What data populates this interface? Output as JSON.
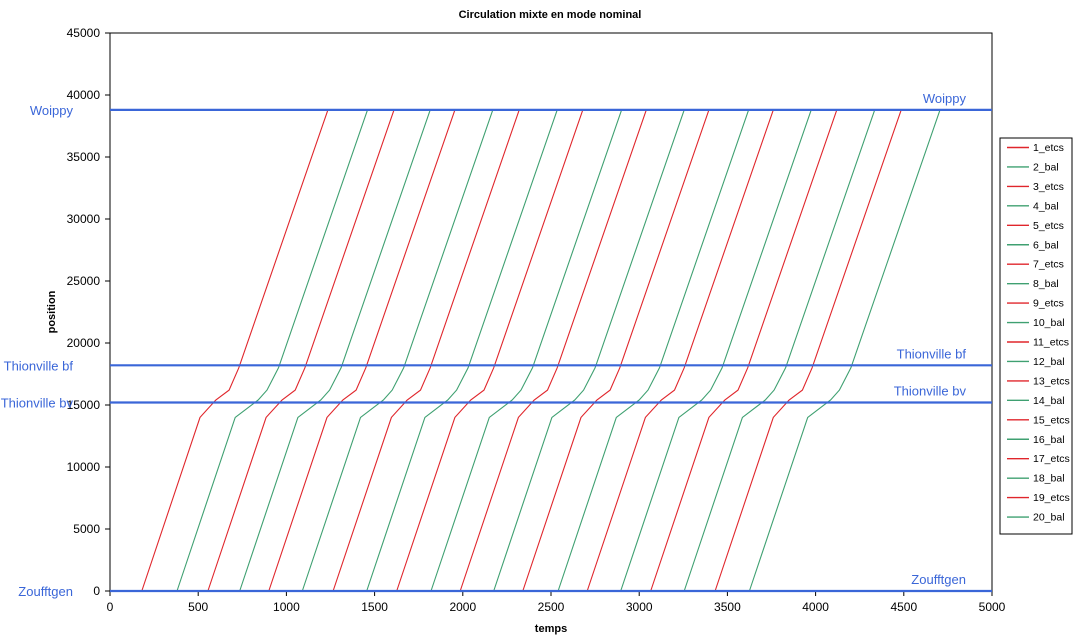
{
  "chart_data": {
    "type": "line",
    "title": "Circulation mixte en mode nominal",
    "xlabel": "temps",
    "ylabel": "position",
    "xlim": [
      0,
      5000
    ],
    "ylim": [
      0,
      45000
    ],
    "x_ticks": [
      "0",
      "500",
      "1000",
      "1500",
      "2000",
      "2500",
      "3000",
      "3500",
      "4000",
      "4500",
      "5000"
    ],
    "y_ticks": [
      "0",
      "5000",
      "10000",
      "15000",
      "20000",
      "25000",
      "30000",
      "35000",
      "40000",
      "45000"
    ],
    "grid": false,
    "legend_position": "right",
    "colors": {
      "etcs": "#e0262c",
      "bal": "#3fa071",
      "station": "#3a66d8"
    },
    "stations": [
      {
        "name": "Zoufftgen",
        "position": 0
      },
      {
        "name": "Thionville bv",
        "position": 15200
      },
      {
        "name": "Thionville bf",
        "position": 18200
      },
      {
        "name": "Woippy",
        "position": 38800
      }
    ],
    "series": [
      {
        "name": "1_etcs",
        "kind": "etcs",
        "x": [
          180,
          510,
          600,
          675,
          730,
          1235
        ],
        "y": [
          0,
          14000,
          15400,
          16200,
          18000,
          38800
        ]
      },
      {
        "name": "2_bal",
        "kind": "bal",
        "x": [
          380,
          710,
          840,
          890,
          955,
          1460
        ],
        "y": [
          0,
          14000,
          15400,
          16200,
          18000,
          38800
        ]
      },
      {
        "name": "3_etcs",
        "kind": "etcs",
        "x": [
          555,
          885,
          975,
          1050,
          1105,
          1610
        ],
        "y": [
          0,
          14000,
          15400,
          16200,
          18000,
          38800
        ]
      },
      {
        "name": "4_bal",
        "kind": "bal",
        "x": [
          735,
          1065,
          1195,
          1245,
          1310,
          1815
        ],
        "y": [
          0,
          14000,
          15400,
          16200,
          18000,
          38800
        ]
      },
      {
        "name": "5_etcs",
        "kind": "etcs",
        "x": [
          900,
          1230,
          1320,
          1395,
          1450,
          1955
        ],
        "y": [
          0,
          14000,
          15400,
          16200,
          18000,
          38800
        ]
      },
      {
        "name": "6_bal",
        "kind": "bal",
        "x": [
          1090,
          1420,
          1550,
          1600,
          1665,
          2170
        ],
        "y": [
          0,
          14000,
          15400,
          16200,
          18000,
          38800
        ]
      },
      {
        "name": "7_etcs",
        "kind": "etcs",
        "x": [
          1265,
          1595,
          1685,
          1760,
          1815,
          2320
        ],
        "y": [
          0,
          14000,
          15400,
          16200,
          18000,
          38800
        ]
      },
      {
        "name": "8_bal",
        "kind": "bal",
        "x": [
          1455,
          1785,
          1915,
          1965,
          2030,
          2535
        ],
        "y": [
          0,
          14000,
          15400,
          16200,
          18000,
          38800
        ]
      },
      {
        "name": "9_etcs",
        "kind": "etcs",
        "x": [
          1625,
          1955,
          2045,
          2120,
          2175,
          2680
        ],
        "y": [
          0,
          14000,
          15400,
          16200,
          18000,
          38800
        ]
      },
      {
        "name": "10_bal",
        "kind": "bal",
        "x": [
          1820,
          2150,
          2280,
          2330,
          2395,
          2900
        ],
        "y": [
          0,
          14000,
          15400,
          16200,
          18000,
          38800
        ]
      },
      {
        "name": "11_etcs",
        "kind": "etcs",
        "x": [
          1985,
          2315,
          2405,
          2480,
          2535,
          3040
        ],
        "y": [
          0,
          14000,
          15400,
          16200,
          18000,
          38800
        ]
      },
      {
        "name": "12_bal",
        "kind": "bal",
        "x": [
          2175,
          2505,
          2635,
          2685,
          2750,
          3255
        ],
        "y": [
          0,
          14000,
          15400,
          16200,
          18000,
          38800
        ]
      },
      {
        "name": "13_etcs",
        "kind": "etcs",
        "x": [
          2340,
          2670,
          2760,
          2835,
          2890,
          3395
        ],
        "y": [
          0,
          14000,
          15400,
          16200,
          18000,
          38800
        ]
      },
      {
        "name": "14_bal",
        "kind": "bal",
        "x": [
          2540,
          2870,
          3000,
          3050,
          3115,
          3620
        ],
        "y": [
          0,
          14000,
          15400,
          16200,
          18000,
          38800
        ]
      },
      {
        "name": "15_etcs",
        "kind": "etcs",
        "x": [
          3065,
          3395,
          3485,
          3560,
          3615,
          4120
        ],
        "y": [
          0,
          14000,
          15400,
          16200,
          18000,
          38800
        ]
      },
      {
        "name": "16_bal",
        "kind": "bal",
        "x": [
          2895,
          3225,
          3355,
          3405,
          3470,
          3975
        ],
        "y": [
          0,
          14000,
          15400,
          16200,
          18000,
          38800
        ]
      },
      {
        "name": "17_etcs",
        "kind": "etcs",
        "x": [
          2705,
          3035,
          3125,
          3200,
          3255,
          3760
        ],
        "y": [
          0,
          14000,
          15400,
          16200,
          18000,
          38800
        ]
      },
      {
        "name": "18_bal",
        "kind": "bal",
        "x": [
          3255,
          3585,
          3715,
          3765,
          3830,
          4335
        ],
        "y": [
          0,
          14000,
          15400,
          16200,
          18000,
          38800
        ]
      },
      {
        "name": "19_etcs",
        "kind": "etcs",
        "x": [
          3430,
          3760,
          3850,
          3925,
          3980,
          4485
        ],
        "y": [
          0,
          14000,
          15400,
          16200,
          18000,
          38800
        ]
      },
      {
        "name": "20_bal",
        "kind": "bal",
        "x": [
          3625,
          3955,
          4085,
          4135,
          4200,
          4705
        ],
        "y": [
          0,
          14000,
          15400,
          16200,
          18000,
          38800
        ]
      }
    ]
  }
}
